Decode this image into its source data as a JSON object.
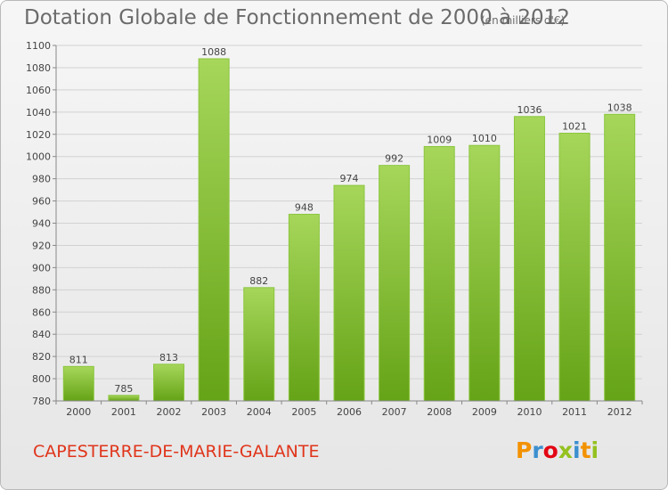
{
  "header": {
    "title": "Dotation Globale de Fonctionnement de 2000 à 2012",
    "subtitle": "(en milliers d'€)"
  },
  "footer": {
    "commune": "CAPESTERRE-DE-MARIE-GALANTE",
    "logo_text": "Proxiti",
    "logo_colors": [
      "#f39200",
      "#3c8fcf",
      "#e30613",
      "#94c11f",
      "#3c8fcf",
      "#f39200",
      "#94c11f"
    ]
  },
  "chart_data": {
    "type": "bar",
    "title": "Dotation Globale de Fonctionnement de 2000 à 2012",
    "subtitle": "(en milliers d'€)",
    "categories": [
      "2000",
      "2001",
      "2002",
      "2003",
      "2004",
      "2005",
      "2006",
      "2007",
      "2008",
      "2009",
      "2010",
      "2011",
      "2012"
    ],
    "values": [
      811,
      785,
      813,
      1088,
      882,
      948,
      974,
      992,
      1009,
      1010,
      1036,
      1021,
      1038
    ],
    "ylim": [
      780,
      1100
    ],
    "yticks": [
      780,
      800,
      820,
      840,
      860,
      880,
      900,
      920,
      940,
      960,
      980,
      1000,
      1020,
      1040,
      1060,
      1080,
      1100
    ],
    "grid": true,
    "bar_color": "#77b02a",
    "bar_color_light": "#9fd253"
  }
}
